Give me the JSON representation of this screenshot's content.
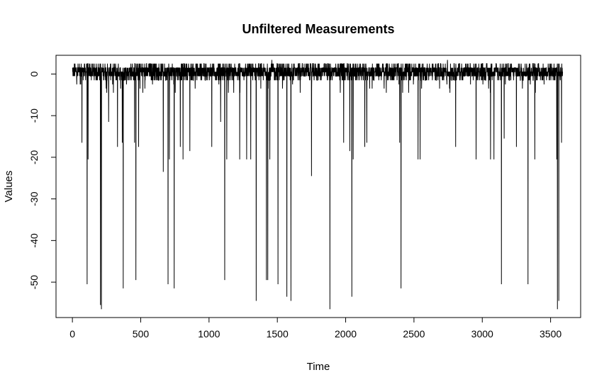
{
  "chart_data": {
    "type": "line",
    "title": "Unfiltered Measurements",
    "xlabel": "Time",
    "ylabel": "Values",
    "xlim": [
      -120,
      3720
    ],
    "ylim": [
      -58.5,
      4.5
    ],
    "x_ticks": [
      0,
      500,
      1000,
      1500,
      2000,
      2500,
      3000,
      3500
    ],
    "x_tick_labels": [
      "0",
      "500",
      "1000",
      "1500",
      "2000",
      "2500",
      "3000",
      "3500"
    ],
    "y_ticks": [
      0,
      -10,
      -20,
      -30,
      -40,
      -50
    ],
    "y_tick_labels": [
      "0",
      "-10",
      "-20",
      "-30",
      "-40",
      "-50"
    ],
    "grid": false,
    "series": [
      {
        "baseline_range": [
          -1.5,
          2.5
        ],
        "n_points": 3600,
        "x_range": [
          1,
          3590
        ],
        "max_peaks": [
          {
            "x": 1345,
            "y": 3.2
          },
          {
            "x": 1460,
            "y": 3.4
          },
          {
            "x": 2745,
            "y": 3.4
          }
        ],
        "dips": [
          {
            "x": 70,
            "y": -16.5
          },
          {
            "x": 108,
            "y": -50.5
          },
          {
            "x": 115,
            "y": -20.5
          },
          {
            "x": 205,
            "y": -55.5
          },
          {
            "x": 212,
            "y": -56.5
          },
          {
            "x": 265,
            "y": -11.5
          },
          {
            "x": 330,
            "y": -17.5
          },
          {
            "x": 365,
            "y": -16.5
          },
          {
            "x": 372,
            "y": -51.5
          },
          {
            "x": 455,
            "y": -16.5
          },
          {
            "x": 465,
            "y": -49.5
          },
          {
            "x": 485,
            "y": -17.5
          },
          {
            "x": 665,
            "y": -23.5
          },
          {
            "x": 700,
            "y": -50.5
          },
          {
            "x": 710,
            "y": -20.5
          },
          {
            "x": 745,
            "y": -51.5
          },
          {
            "x": 790,
            "y": -17.5
          },
          {
            "x": 810,
            "y": -20.5
          },
          {
            "x": 860,
            "y": -18.5
          },
          {
            "x": 1020,
            "y": -17.5
          },
          {
            "x": 1085,
            "y": -11.5
          },
          {
            "x": 1115,
            "y": -49.5
          },
          {
            "x": 1130,
            "y": -20.5
          },
          {
            "x": 1225,
            "y": -20.5
          },
          {
            "x": 1275,
            "y": -20.5
          },
          {
            "x": 1305,
            "y": -20.5
          },
          {
            "x": 1345,
            "y": -54.5
          },
          {
            "x": 1420,
            "y": -49.5
          },
          {
            "x": 1430,
            "y": -49.5
          },
          {
            "x": 1445,
            "y": -20.5
          },
          {
            "x": 1505,
            "y": -50.5
          },
          {
            "x": 1570,
            "y": -53.5
          },
          {
            "x": 1600,
            "y": -54.5
          },
          {
            "x": 1750,
            "y": -24.5
          },
          {
            "x": 1885,
            "y": -56.5
          },
          {
            "x": 1985,
            "y": -16.5
          },
          {
            "x": 2030,
            "y": -18.5
          },
          {
            "x": 2045,
            "y": -53.5
          },
          {
            "x": 2055,
            "y": -20.5
          },
          {
            "x": 2140,
            "y": -17.5
          },
          {
            "x": 2155,
            "y": -16.5
          },
          {
            "x": 2395,
            "y": -16.5
          },
          {
            "x": 2405,
            "y": -51.5
          },
          {
            "x": 2530,
            "y": -20.5
          },
          {
            "x": 2545,
            "y": -20.5
          },
          {
            "x": 2805,
            "y": -17.5
          },
          {
            "x": 2955,
            "y": -20.5
          },
          {
            "x": 3060,
            "y": -20.5
          },
          {
            "x": 3085,
            "y": -20.5
          },
          {
            "x": 3140,
            "y": -50.5
          },
          {
            "x": 3160,
            "y": -15.5
          },
          {
            "x": 3250,
            "y": -17.5
          },
          {
            "x": 3335,
            "y": -50.5
          },
          {
            "x": 3385,
            "y": -20.5
          },
          {
            "x": 3545,
            "y": -20.5
          },
          {
            "x": 3550,
            "y": -56.5
          },
          {
            "x": 3560,
            "y": -54.5
          },
          {
            "x": 3580,
            "y": -16.5
          }
        ]
      }
    ]
  }
}
